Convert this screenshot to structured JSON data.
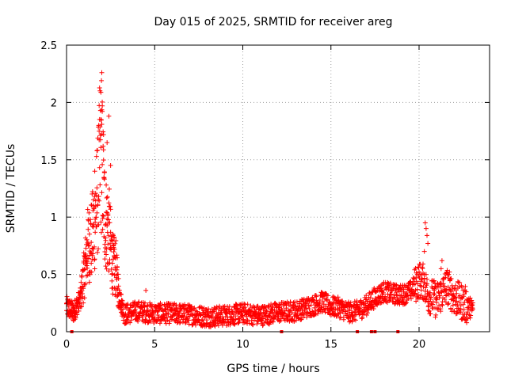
{
  "chart_data": {
    "type": "scatter",
    "title": "Day 015 of 2025, SRMTID for receiver areg",
    "xlabel": "GPS time / hours",
    "ylabel": "SRMTID / TECUs",
    "xlim": [
      0,
      24
    ],
    "ylim": [
      0,
      2.5
    ],
    "xticks": [
      0,
      5,
      10,
      15,
      20
    ],
    "xtick_labels": [
      "0",
      "5",
      "10",
      "15",
      "20"
    ],
    "yticks": [
      0,
      0.5,
      1,
      1.5,
      2,
      2.5
    ],
    "ytick_labels": [
      "0",
      "0.5",
      "1",
      "1.5",
      "2",
      "2.5"
    ],
    "grid": true,
    "series": [
      {
        "name": "SRMTID",
        "marker": "+",
        "color": "#ff0000",
        "profile_hours": [
          0,
          0.4,
          0.8,
          1.0,
          1.2,
          1.4,
          1.6,
          1.8,
          1.9,
          2.0,
          2.1,
          2.2,
          2.4,
          2.6,
          2.8,
          2.95,
          3.1,
          3.3,
          4,
          5,
          6,
          7,
          8,
          9,
          10,
          11,
          12,
          13,
          14,
          14.5,
          15,
          15.5,
          16,
          16.5,
          17,
          17.5,
          18,
          18.5,
          19,
          19.5,
          20,
          20.3,
          20.5,
          20.8,
          21,
          21.3,
          21.6,
          22,
          22.5,
          23
        ],
        "profile_values": [
          0.22,
          0.17,
          0.3,
          0.5,
          0.75,
          0.8,
          0.95,
          1.25,
          1.55,
          1.5,
          1.2,
          0.95,
          0.9,
          0.6,
          0.55,
          0.35,
          0.25,
          0.15,
          0.18,
          0.16,
          0.16,
          0.15,
          0.13,
          0.14,
          0.16,
          0.14,
          0.17,
          0.18,
          0.23,
          0.26,
          0.22,
          0.21,
          0.17,
          0.18,
          0.23,
          0.3,
          0.35,
          0.33,
          0.32,
          0.35,
          0.45,
          0.43,
          0.32,
          0.3,
          0.27,
          0.34,
          0.4,
          0.3,
          0.25,
          0.2
        ],
        "peaks": [
          {
            "x": 1.6,
            "y": 1.4
          },
          {
            "x": 1.85,
            "y": 1.75
          },
          {
            "x": 1.95,
            "y": 1.85
          },
          {
            "x": 1.98,
            "y": 2.19
          },
          {
            "x": 2.0,
            "y": 2.26
          },
          {
            "x": 2.03,
            "y": 1.97
          },
          {
            "x": 2.1,
            "y": 1.72
          },
          {
            "x": 2.4,
            "y": 1.88
          },
          {
            "x": 2.3,
            "y": 1.65
          },
          {
            "x": 2.5,
            "y": 1.45
          },
          {
            "x": 2.7,
            "y": 0.82
          },
          {
            "x": 20.35,
            "y": 0.95
          },
          {
            "x": 20.4,
            "y": 0.9
          },
          {
            "x": 20.45,
            "y": 0.84
          },
          {
            "x": 20.5,
            "y": 0.77
          },
          {
            "x": 20.3,
            "y": 0.7
          },
          {
            "x": 21.3,
            "y": 0.62
          },
          {
            "x": 21.25,
            "y": 0.55
          },
          {
            "x": 4.5,
            "y": 0.36
          },
          {
            "x": 14.5,
            "y": 0.34
          }
        ],
        "zero_points": [
          0.3,
          12.2,
          16.5,
          17.3,
          17.5,
          18.8
        ]
      }
    ]
  }
}
